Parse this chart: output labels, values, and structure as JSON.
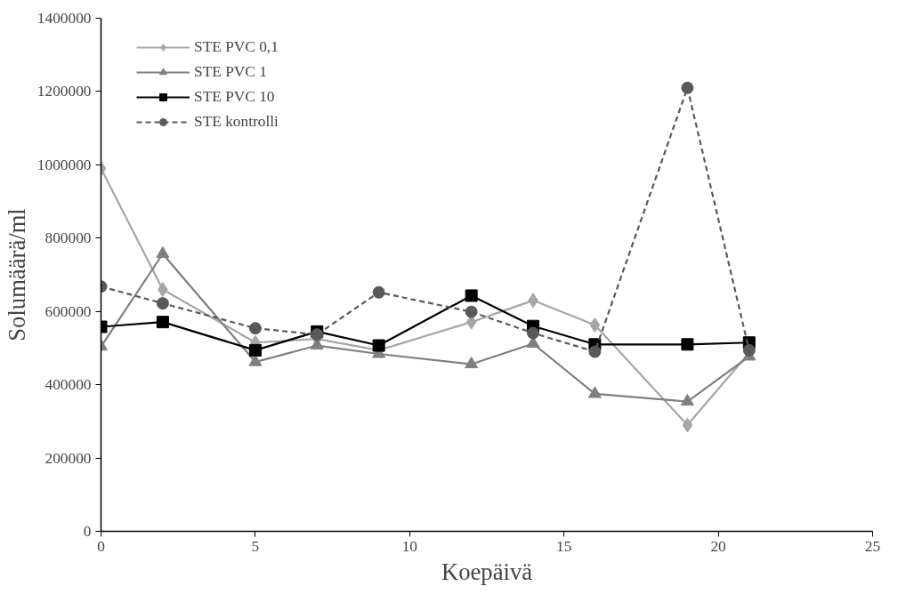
{
  "chart_data": {
    "type": "line",
    "xlabel": "Koepäivä",
    "ylabel": "Solumäärä/ml",
    "x": [
      0,
      2,
      5,
      7,
      9,
      12,
      14,
      16,
      19,
      21
    ],
    "xlim": [
      0,
      25
    ],
    "xticks": [
      0,
      5,
      10,
      15,
      20,
      25
    ],
    "ylim": [
      0,
      1400000
    ],
    "yticks": [
      0,
      200000,
      400000,
      600000,
      800000,
      1000000,
      1200000,
      1400000
    ],
    "grid": false,
    "legend": "top left",
    "series": [
      {
        "name": "STE PVC 0,1",
        "color": "#a6a6a6",
        "marker": "diamond",
        "line_style": "solid",
        "values": [
          990000,
          660000,
          515000,
          525000,
          494000,
          571000,
          630000,
          563000,
          290000,
          487000
        ]
      },
      {
        "name": "STE PVC 1",
        "color": "#7f7f7f",
        "marker": "triangle",
        "line_style": "solid",
        "values": [
          504000,
          757000,
          462000,
          507000,
          484000,
          456000,
          512000,
          375000,
          354000,
          477000
        ]
      },
      {
        "name": "STE PVC 10",
        "color": "#000000",
        "marker": "square",
        "line_style": "solid",
        "values": [
          558000,
          571000,
          494000,
          545000,
          507000,
          643000,
          560000,
          510000,
          510000,
          515000
        ]
      },
      {
        "name": "STE kontrolli",
        "color": "#595959",
        "marker": "circle",
        "line_style": "dashed",
        "values": [
          668000,
          622000,
          554000,
          537000,
          652000,
          599000,
          541000,
          490000,
          1210000,
          494000
        ]
      }
    ]
  }
}
